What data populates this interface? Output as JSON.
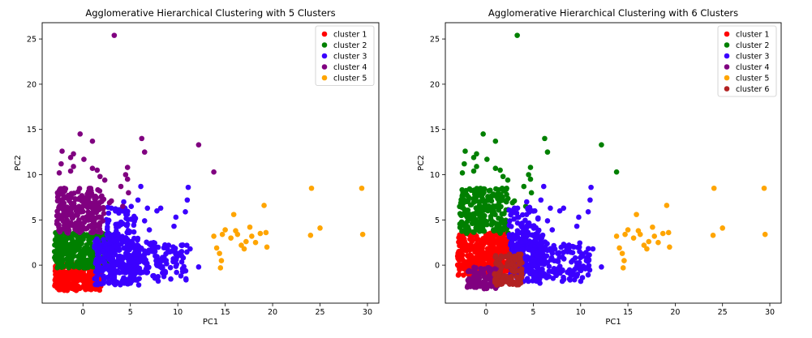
{
  "chart_data": [
    {
      "type": "scatter",
      "title": "Agglomerative Hierarchical Clustering with 5 Clusters",
      "xlabel": "PC1",
      "ylabel": "PC2",
      "xlim": [
        -4.3,
        31.2
      ],
      "ylim": [
        -4.2,
        26.8
      ],
      "xticks": [
        0,
        5,
        10,
        15,
        20,
        25,
        30
      ],
      "yticks": [
        0,
        5,
        10,
        15,
        20,
        25
      ],
      "legend_position": "top-right",
      "series": [
        {
          "name": "cluster 1",
          "color": "#ff0000",
          "regions": [
            {
              "xrange": [
                -3.0,
                2.0
              ],
              "yrange": [
                -2.8,
                0.2
              ],
              "count": 260
            }
          ],
          "points": [
            [
              -2.8,
              -0.6
            ],
            [
              -2.2,
              -1.0
            ],
            [
              1.6,
              -1.5
            ],
            [
              1.8,
              -0.8
            ],
            [
              -0.5,
              -2.6
            ],
            [
              0.5,
              -2.5
            ]
          ]
        },
        {
          "name": "cluster 2",
          "color": "#008000",
          "regions": [
            {
              "xrange": [
                -3.0,
                2.8
              ],
              "yrange": [
                -0.3,
                3.6
              ],
              "count": 320
            }
          ],
          "points": [
            [
              -3.0,
              1.5
            ],
            [
              -2.9,
              0.6
            ],
            [
              2.6,
              2.0
            ],
            [
              2.4,
              1.0
            ]
          ]
        },
        {
          "name": "cluster 3",
          "color": "#3b00ff",
          "regions": [
            {
              "xrange": [
                1.2,
                6.0
              ],
              "yrange": [
                -2.2,
                3.0
              ],
              "count": 280
            },
            {
              "xrange": [
                5.0,
                11.0
              ],
              "yrange": [
                -1.8,
                2.6
              ],
              "count": 120
            },
            {
              "xrange": [
                2.4,
                5.6
              ],
              "yrange": [
                3.0,
                6.5
              ],
              "count": 60
            }
          ],
          "points": [
            [
              6.1,
              8.7
            ],
            [
              7.8,
              6.0
            ],
            [
              8.2,
              6.3
            ],
            [
              9.8,
              5.3
            ],
            [
              9.6,
              4.3
            ],
            [
              11.1,
              8.6
            ],
            [
              11.0,
              7.2
            ],
            [
              10.8,
              5.9
            ],
            [
              11.3,
              1.8
            ],
            [
              12.2,
              -0.2
            ],
            [
              10.5,
              -0.4
            ],
            [
              6.5,
              4.9
            ],
            [
              7.0,
              3.9
            ],
            [
              5.8,
              7.2
            ],
            [
              4.3,
              7.0
            ],
            [
              6.8,
              6.3
            ],
            [
              5.5,
              5.1
            ],
            [
              3.0,
              6.3
            ]
          ]
        },
        {
          "name": "cluster 4",
          "color": "#800080",
          "regions": [
            {
              "xrange": [
                -2.8,
                2.2
              ],
              "yrange": [
                3.5,
                8.5
              ],
              "count": 220
            }
          ],
          "points": [
            [
              3.3,
              25.4
            ],
            [
              -0.3,
              14.5
            ],
            [
              1.0,
              13.7
            ],
            [
              -2.2,
              12.6
            ],
            [
              -1.0,
              12.3
            ],
            [
              0.1,
              11.7
            ],
            [
              -1.3,
              11.9
            ],
            [
              -2.3,
              11.2
            ],
            [
              -2.5,
              10.2
            ],
            [
              -1.3,
              10.4
            ],
            [
              -1.0,
              10.9
            ],
            [
              1.0,
              10.7
            ],
            [
              1.5,
              10.5
            ],
            [
              6.2,
              14.0
            ],
            [
              6.5,
              12.5
            ],
            [
              4.7,
              10.8
            ],
            [
              4.5,
              10.0
            ],
            [
              4.7,
              9.5
            ],
            [
              1.8,
              9.8
            ],
            [
              2.3,
              9.4
            ],
            [
              12.2,
              13.3
            ],
            [
              13.8,
              10.3
            ],
            [
              4.0,
              8.7
            ],
            [
              4.8,
              8.0
            ],
            [
              3.0,
              7.1
            ],
            [
              2.8,
              6.9
            ],
            [
              4.2,
              6.5
            ]
          ]
        },
        {
          "name": "cluster 5",
          "color": "#ffa500",
          "regions": [],
          "points": [
            [
              13.8,
              3.2
            ],
            [
              14.1,
              1.9
            ],
            [
              14.4,
              1.3
            ],
            [
              14.6,
              0.5
            ],
            [
              14.5,
              -0.3
            ],
            [
              14.7,
              3.4
            ],
            [
              15.0,
              3.9
            ],
            [
              15.6,
              3.0
            ],
            [
              15.9,
              5.6
            ],
            [
              16.1,
              3.8
            ],
            [
              16.3,
              3.4
            ],
            [
              16.7,
              2.2
            ],
            [
              17.0,
              1.8
            ],
            [
              17.2,
              2.6
            ],
            [
              17.6,
              4.2
            ],
            [
              17.8,
              3.2
            ],
            [
              18.2,
              2.5
            ],
            [
              18.7,
              3.5
            ],
            [
              19.1,
              6.6
            ],
            [
              19.3,
              3.6
            ],
            [
              19.4,
              2.0
            ],
            [
              24.1,
              8.5
            ],
            [
              24.0,
              3.3
            ],
            [
              25.0,
              4.1
            ],
            [
              29.4,
              8.5
            ],
            [
              29.5,
              3.4
            ]
          ]
        }
      ]
    },
    {
      "type": "scatter",
      "title": "Agglomerative Hierarchical Clustering with 6 Clusters",
      "xlabel": "PC1",
      "ylabel": "PC2",
      "xlim": [
        -4.3,
        31.2
      ],
      "ylim": [
        -4.2,
        26.8
      ],
      "xticks": [
        0,
        5,
        10,
        15,
        20,
        25,
        30
      ],
      "yticks": [
        0,
        5,
        10,
        15,
        20,
        25
      ],
      "legend_position": "top-right",
      "series": [
        {
          "name": "cluster 1",
          "color": "#ff0000",
          "regions": [
            {
              "xrange": [
                -3.0,
                2.5
              ],
              "yrange": [
                -1.2,
                3.6
              ],
              "count": 380
            }
          ],
          "points": [
            [
              -3.0,
              1.0
            ],
            [
              -2.8,
              -0.5
            ],
            [
              2.8,
              2.0
            ],
            [
              2.5,
              1.0
            ]
          ]
        },
        {
          "name": "cluster 2",
          "color": "#008000",
          "regions": [
            {
              "xrange": [
                -2.8,
                2.4
              ],
              "yrange": [
                3.5,
                8.5
              ],
              "count": 240
            }
          ],
          "points": [
            [
              3.3,
              25.4
            ],
            [
              -0.3,
              14.5
            ],
            [
              1.0,
              13.7
            ],
            [
              -2.2,
              12.6
            ],
            [
              -1.0,
              12.3
            ],
            [
              0.1,
              11.7
            ],
            [
              -1.3,
              11.9
            ],
            [
              -2.3,
              11.2
            ],
            [
              -2.5,
              10.2
            ],
            [
              -1.3,
              10.4
            ],
            [
              -1.0,
              10.9
            ],
            [
              1.0,
              10.7
            ],
            [
              1.5,
              10.5
            ],
            [
              6.2,
              14.0
            ],
            [
              6.5,
              12.5
            ],
            [
              4.7,
              10.8
            ],
            [
              4.5,
              10.0
            ],
            [
              4.7,
              9.5
            ],
            [
              1.8,
              9.8
            ],
            [
              2.3,
              9.4
            ],
            [
              12.2,
              13.3
            ],
            [
              13.8,
              10.3
            ],
            [
              4.0,
              8.7
            ],
            [
              4.8,
              8.0
            ],
            [
              3.0,
              7.1
            ],
            [
              2.8,
              6.9
            ],
            [
              4.2,
              6.5
            ]
          ]
        },
        {
          "name": "cluster 3",
          "color": "#3b00ff",
          "regions": [
            {
              "xrange": [
                2.5,
                6.0
              ],
              "yrange": [
                -2.0,
                3.4
              ],
              "count": 220
            },
            {
              "xrange": [
                5.0,
                11.0
              ],
              "yrange": [
                -1.8,
                2.6
              ],
              "count": 120
            },
            {
              "xrange": [
                2.4,
                5.6
              ],
              "yrange": [
                3.0,
                6.5
              ],
              "count": 60
            }
          ],
          "points": [
            [
              6.1,
              8.7
            ],
            [
              7.8,
              6.0
            ],
            [
              8.2,
              6.3
            ],
            [
              9.8,
              5.3
            ],
            [
              9.6,
              4.3
            ],
            [
              11.1,
              8.6
            ],
            [
              11.0,
              7.2
            ],
            [
              10.8,
              5.9
            ],
            [
              11.3,
              1.8
            ],
            [
              12.2,
              -0.2
            ],
            [
              10.5,
              -0.4
            ],
            [
              6.5,
              4.9
            ],
            [
              7.0,
              3.9
            ],
            [
              5.8,
              7.2
            ],
            [
              4.3,
              7.0
            ],
            [
              6.8,
              6.3
            ],
            [
              5.5,
              5.1
            ],
            [
              3.0,
              6.3
            ]
          ]
        },
        {
          "name": "cluster 4",
          "color": "#800080",
          "regions": [
            {
              "xrange": [
                -2.0,
                1.2
              ],
              "yrange": [
                -2.6,
                -0.2
              ],
              "count": 120
            }
          ],
          "points": [
            [
              -1.8,
              -1.5
            ],
            [
              -1.5,
              -2.0
            ],
            [
              -0.2,
              -2.6
            ]
          ]
        },
        {
          "name": "cluster 5",
          "color": "#ffa500",
          "regions": [],
          "points": [
            [
              13.8,
              3.2
            ],
            [
              14.1,
              1.9
            ],
            [
              14.4,
              1.3
            ],
            [
              14.6,
              0.5
            ],
            [
              14.5,
              -0.3
            ],
            [
              14.7,
              3.4
            ],
            [
              15.0,
              3.9
            ],
            [
              15.6,
              3.0
            ],
            [
              15.9,
              5.6
            ],
            [
              16.1,
              3.8
            ],
            [
              16.3,
              3.4
            ],
            [
              16.7,
              2.2
            ],
            [
              17.0,
              1.8
            ],
            [
              17.2,
              2.6
            ],
            [
              17.6,
              4.2
            ],
            [
              17.8,
              3.2
            ],
            [
              18.2,
              2.5
            ],
            [
              18.7,
              3.5
            ],
            [
              19.1,
              6.6
            ],
            [
              19.3,
              3.6
            ],
            [
              19.4,
              2.0
            ],
            [
              24.1,
              8.5
            ],
            [
              24.0,
              3.3
            ],
            [
              25.0,
              4.1
            ],
            [
              29.4,
              8.5
            ],
            [
              29.5,
              3.4
            ]
          ]
        },
        {
          "name": "cluster 6",
          "color": "#b22222",
          "regions": [
            {
              "xrange": [
                0.9,
                3.8
              ],
              "yrange": [
                -2.2,
                1.3
              ],
              "count": 120
            }
          ],
          "points": [
            [
              1.0,
              -1.5
            ],
            [
              3.6,
              0.8
            ],
            [
              2.5,
              -2.1
            ]
          ]
        }
      ]
    }
  ]
}
